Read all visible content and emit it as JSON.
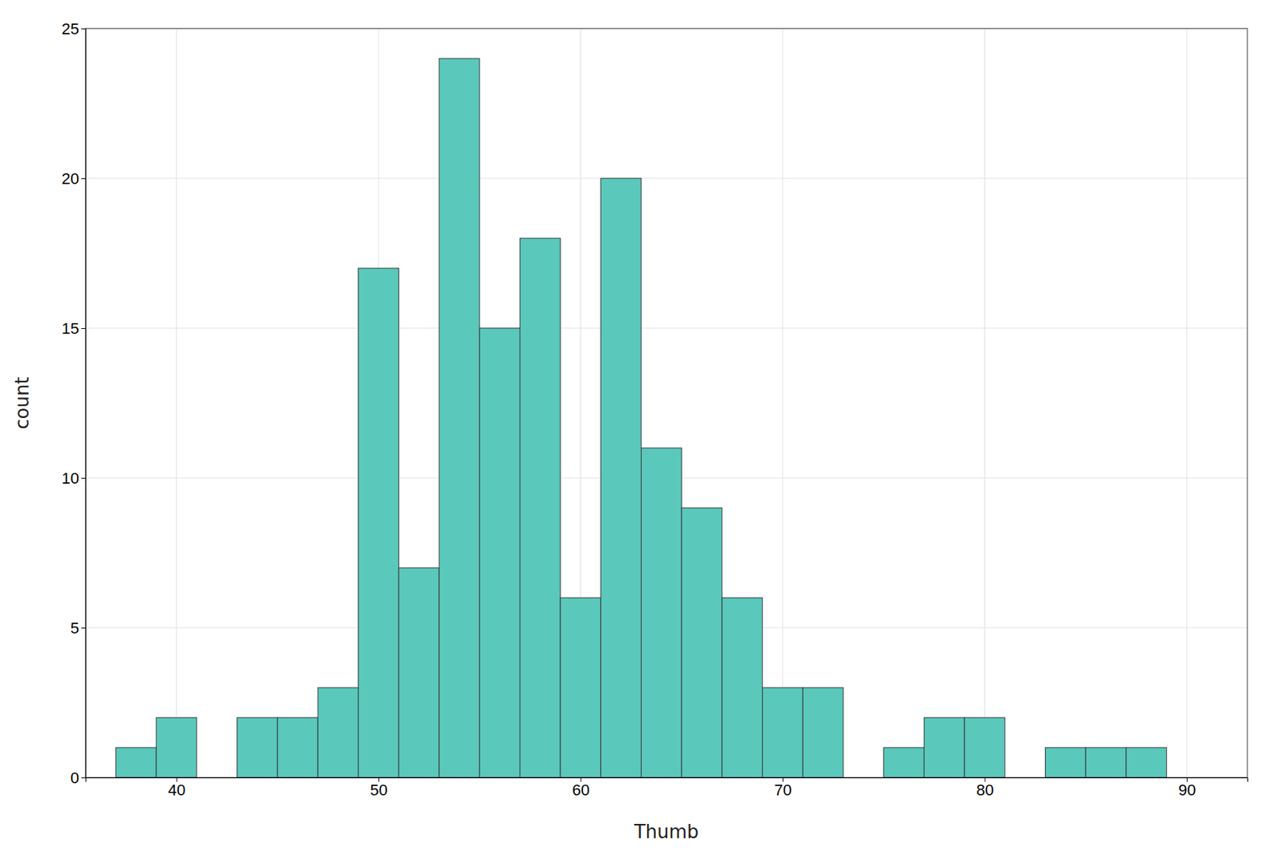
{
  "chart_data": {
    "type": "histogram",
    "xlabel": "Thumb",
    "ylabel": "count",
    "bins": [
      37,
      39,
      41,
      43,
      45,
      47,
      49,
      51,
      53,
      55,
      57,
      59,
      61,
      63,
      65,
      67,
      69,
      71,
      73,
      75,
      77,
      79,
      81,
      83,
      85,
      87,
      89,
      91
    ],
    "values": [
      1,
      2,
      0,
      2,
      2,
      3,
      17,
      7,
      24,
      15,
      18,
      6,
      20,
      11,
      9,
      6,
      3,
      3,
      0,
      1,
      2,
      2,
      0,
      1,
      1,
      1,
      0
    ],
    "color": "#5bc8bc",
    "xlim": [
      35.5,
      93
    ],
    "ylim": [
      0,
      25
    ],
    "xticks": [
      40,
      50,
      60,
      70,
      80,
      90
    ],
    "yticks": [
      0,
      5,
      10,
      15,
      20,
      25
    ],
    "grid": true
  }
}
